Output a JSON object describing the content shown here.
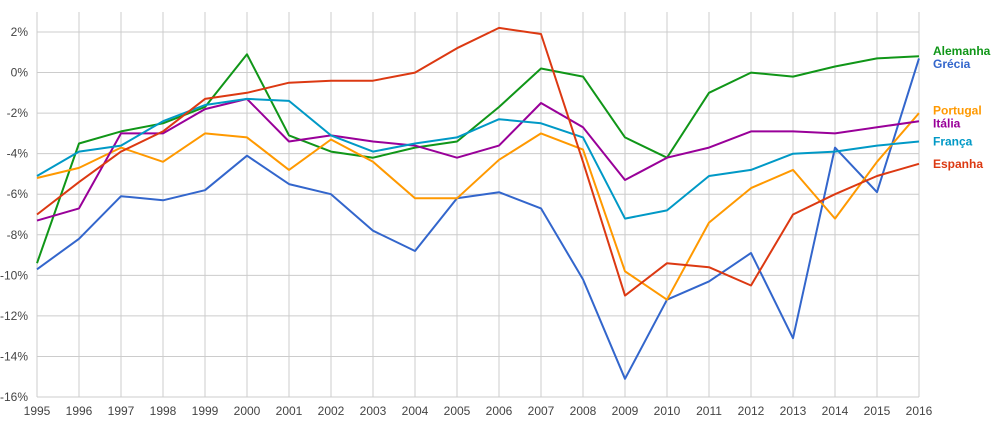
{
  "chart_data": {
    "type": "line",
    "title": "",
    "xlabel": "",
    "ylabel": "",
    "ylim": [
      -16,
      2
    ],
    "y_ticks": [
      "2%",
      "0%",
      "-2%",
      "-4%",
      "-6%",
      "-8%",
      "-10%",
      "-12%",
      "-14%",
      "-16%"
    ],
    "y_tick_values": [
      2,
      0,
      -2,
      -4,
      -6,
      -8,
      -10,
      -12,
      -14,
      -16
    ],
    "x": [
      "1995",
      "1996",
      "1997",
      "1998",
      "1999",
      "2000",
      "2001",
      "2002",
      "2003",
      "2004",
      "2005",
      "2006",
      "2007",
      "2008",
      "2009",
      "2010",
      "2011",
      "2012",
      "2013",
      "2014",
      "2015",
      "2016"
    ],
    "grid": true,
    "legend": "right, at line ends",
    "series": [
      {
        "name": "Alemanha",
        "color": "#109618",
        "values": [
          -9.4,
          -3.5,
          -2.9,
          -2.5,
          -1.7,
          0.9,
          -3.1,
          -3.9,
          -4.2,
          -3.7,
          -3.4,
          -1.7,
          0.2,
          -0.2,
          -3.2,
          -4.2,
          -1.0,
          0.0,
          -0.2,
          0.3,
          0.7,
          0.8
        ]
      },
      {
        "name": "Grécia",
        "color": "#3366cc",
        "values": [
          -9.7,
          -8.2,
          -6.1,
          -6.3,
          -5.8,
          -4.1,
          -5.5,
          -6.0,
          -7.8,
          -8.8,
          -6.2,
          -5.9,
          -6.7,
          -10.2,
          -15.1,
          -11.2,
          -10.3,
          -8.9,
          -13.1,
          -3.7,
          -5.9,
          0.7
        ]
      },
      {
        "name": "Portugal",
        "color": "#ff9900",
        "values": [
          -5.2,
          -4.7,
          -3.7,
          -4.4,
          -3.0,
          -3.2,
          -4.8,
          -3.3,
          -4.4,
          -6.2,
          -6.2,
          -4.3,
          -3.0,
          -3.8,
          -9.8,
          -11.2,
          -7.4,
          -5.7,
          -4.8,
          -7.2,
          -4.4,
          -2.0
        ]
      },
      {
        "name": "Itália",
        "color": "#990099",
        "values": [
          -7.3,
          -6.7,
          -3.0,
          -3.0,
          -1.8,
          -1.3,
          -3.4,
          -3.1,
          -3.4,
          -3.6,
          -4.2,
          -3.6,
          -1.5,
          -2.7,
          -5.3,
          -4.2,
          -3.7,
          -2.9,
          -2.9,
          -3.0,
          -2.7,
          -2.4
        ]
      },
      {
        "name": "França",
        "color": "#0099c6",
        "values": [
          -5.1,
          -3.9,
          -3.6,
          -2.4,
          -1.6,
          -1.3,
          -1.4,
          -3.1,
          -3.9,
          -3.5,
          -3.2,
          -2.3,
          -2.5,
          -3.2,
          -7.2,
          -6.8,
          -5.1,
          -4.8,
          -4.0,
          -3.9,
          -3.6,
          -3.4
        ]
      },
      {
        "name": "Espanha",
        "color": "#dc3912",
        "values": [
          -7.0,
          -5.4,
          -3.9,
          -2.9,
          -1.3,
          -1.0,
          -0.5,
          -0.4,
          -0.4,
          0.0,
          1.2,
          2.2,
          1.9,
          -4.4,
          -11.0,
          -9.4,
          -9.6,
          -10.5,
          -7.0,
          -6.0,
          -5.1,
          -4.5
        ]
      }
    ]
  }
}
